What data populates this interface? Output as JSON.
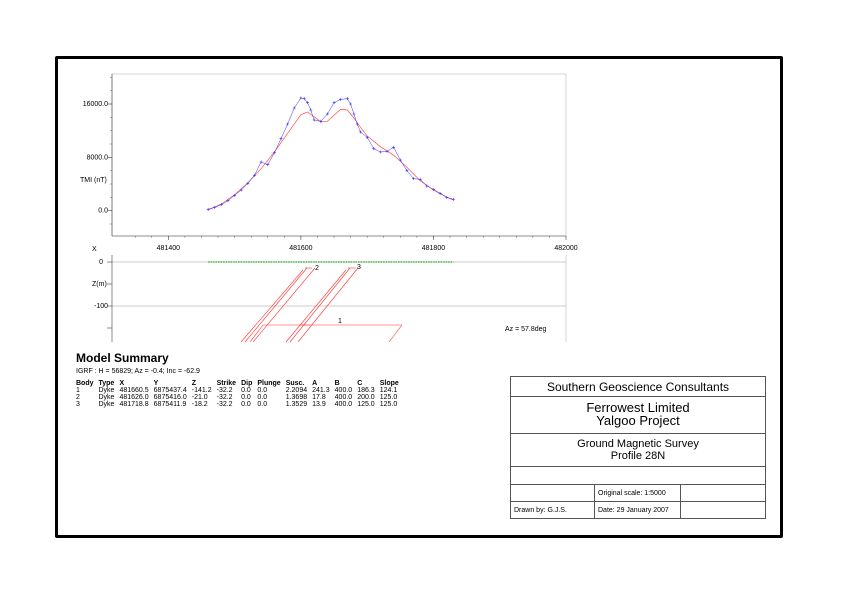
{
  "chart_data": {
    "type": "line",
    "ylabel": "TMI (nT)",
    "x_axis_label": "X",
    "x_ticks": [
      "481400",
      "481600",
      "481800",
      "482000"
    ],
    "y_ticks": [
      "16000.0",
      "8000.0",
      "0.0"
    ],
    "xlim": [
      481315,
      482000
    ],
    "ylim": [
      -3800,
      20500
    ],
    "series": [
      {
        "name": "observed",
        "style": "crosses",
        "x": [
          481460,
          481470,
          481480,
          481490,
          481500,
          481510,
          481520,
          481530,
          481540,
          481550,
          481560,
          481570,
          481580,
          481590,
          481600,
          481605,
          481610,
          481615,
          481620,
          481630,
          481640,
          481650,
          481660,
          481670,
          481675,
          481680,
          481685,
          481690,
          481700,
          481710,
          481720,
          481730,
          481740,
          481750,
          481760,
          481770,
          481780,
          481790,
          481800,
          481810,
          481820,
          481830
        ],
        "y": [
          200,
          500,
          900,
          1500,
          2300,
          3100,
          4100,
          5300,
          7300,
          6900,
          8700,
          10800,
          13000,
          15400,
          16900,
          16800,
          16200,
          15100,
          13600,
          13400,
          14500,
          16200,
          16700,
          16800,
          16000,
          14500,
          13000,
          11800,
          11000,
          9300,
          8800,
          8900,
          9500,
          7600,
          6000,
          4800,
          4700,
          3700,
          3200,
          2600,
          2000,
          1700
        ]
      },
      {
        "name": "calculated",
        "style": "line",
        "x": [
          481460,
          481480,
          481500,
          481520,
          481540,
          481560,
          481580,
          481600,
          481610,
          481620,
          481630,
          481640,
          481650,
          481660,
          481670,
          481680,
          481690,
          481700,
          481720,
          481740,
          481760,
          481780,
          481800,
          481820,
          481830
        ],
        "y": [
          100,
          1000,
          2400,
          4200,
          6300,
          8800,
          11600,
          14400,
          14800,
          14100,
          13300,
          13400,
          14300,
          15200,
          15100,
          13900,
          12500,
          11200,
          9600,
          8300,
          6500,
          4500,
          3100,
          2000,
          1600
        ]
      }
    ],
    "section": {
      "ylabel": "Z(m)",
      "y_ticks": [
        "0",
        "-100"
      ],
      "ylim": [
        -185,
        5
      ],
      "azimuth_label": "Az = 57.8deg",
      "surface_x": [
        481460,
        481830
      ],
      "bodies_labels": [
        "2",
        "3",
        "1"
      ]
    }
  },
  "summary": {
    "title": "Model Summary",
    "igrf": "IGRF :   H = 56829;  Az = -0.4;  Inc = -62.9",
    "headers": [
      "Body",
      "Type",
      "X",
      "Y",
      "Z",
      "Strike",
      "Dip",
      "Plunge",
      "Susc.",
      "A",
      "B",
      "C",
      "Slope"
    ],
    "rows": [
      [
        "1",
        "Dyke",
        "481660.5",
        "6875437.4",
        "-141.2",
        "-32.2",
        "0.0",
        "0.0",
        "2.2094",
        "241.3",
        "400.0",
        "186.3",
        "124.1"
      ],
      [
        "2",
        "Dyke",
        "481626.0",
        "6875416.0",
        "-21.0",
        "-32.2",
        "0.0",
        "0.0",
        "1.3698",
        "17.8",
        "400.0",
        "200.0",
        "125.0"
      ],
      [
        "3",
        "Dyke",
        "481718.8",
        "6875411.9",
        "-18.2",
        "-32.2",
        "0.0",
        "0.0",
        "1.3529",
        "13.9",
        "400.0",
        "125.0",
        "125.0"
      ]
    ]
  },
  "titleblock": {
    "company": "Southern Geoscience Consultants",
    "client_line1": "Ferrowest Limited",
    "client_line2": "Yalgoo Project",
    "survey_line1": "Ground Magnetic Survey",
    "survey_line2": "Profile 28N",
    "scale": "Original scale: 1:5000",
    "drawn_by": "Drawn by: G.J.S.",
    "date": "Date: 29 January 2007"
  },
  "colors": {
    "observed": "#3333ff",
    "calculated": "#ff4d4d",
    "bodies": "#ff3333",
    "surface": "#22aa22"
  }
}
